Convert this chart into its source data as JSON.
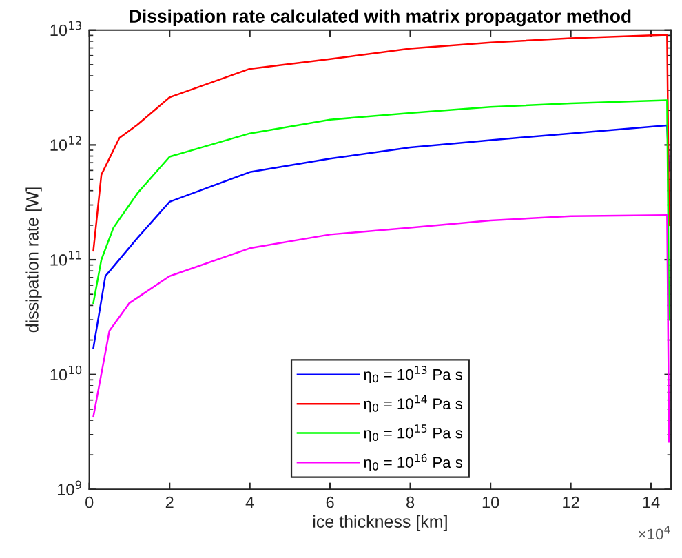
{
  "chart_data": {
    "type": "line",
    "title": "Dissipation rate calculated with matrix propagator method",
    "xlabel": "ice thickness [km]",
    "ylabel": "dissipation rate [W]",
    "annotations": [
      "×10$^{4}$"
    ],
    "log": "y",
    "xlim": [
      0,
      14.5
    ],
    "xticks": [
      0,
      2,
      4,
      6,
      8,
      10,
      12,
      14
    ],
    "ylim": [
      1000000000.0,
      10000000000000.0
    ],
    "yticks": [
      {
        "value": 1000000000.0,
        "label": "10$^{9}$"
      },
      {
        "value": 10000000000.0,
        "label": "10$^{10}$"
      },
      {
        "value": 100000000000.0,
        "label": "10$^{11}$"
      },
      {
        "value": 1000000000000.0,
        "label": "10$^{12}$"
      },
      {
        "value": 10000000000000.0,
        "label": "10$^{13}$"
      }
    ],
    "grid": false,
    "legend": "bottom",
    "line_style": "solid",
    "marker": "none",
    "series": [
      {
        "name": "η$_{0}$ = 10$^{13}$ Pa s",
        "color": "#0000ff",
        "x": [
          0.1,
          0.4,
          1.2,
          2,
          4,
          6,
          8,
          10,
          12,
          14.4,
          14.45
        ],
        "values": [
          17000000000.0,
          72000000000.0,
          155000000000.0,
          320000000000.0,
          580000000000.0,
          760000000000.0,
          950000000000.0,
          1100000000000.0,
          1260000000000.0,
          1480000000000.0,
          600000000000.0
        ]
      },
      {
        "name": "η$_{0}$ = 10$^{14}$ Pa s",
        "color": "#ff0000",
        "x": [
          0.1,
          0.3,
          0.75,
          1.2,
          2,
          4,
          6,
          8,
          10,
          12,
          14.4,
          14.45
        ],
        "values": [
          120000000000.0,
          550000000000.0,
          1150000000000.0,
          1500000000000.0,
          2600000000000.0,
          4600000000000.0,
          5600000000000.0,
          6900000000000.0,
          7800000000000.0,
          8500000000000.0,
          9100000000000.0,
          200000000000.0
        ]
      },
      {
        "name": "η$_{0}$ = 10$^{15}$ Pa s",
        "color": "#00ff00",
        "x": [
          0.1,
          0.3,
          0.6,
          1.2,
          2,
          4,
          6,
          8,
          10,
          12,
          14.4,
          14.45
        ],
        "values": [
          42000000000.0,
          100000000000.0,
          190000000000.0,
          380000000000.0,
          790000000000.0,
          1260000000000.0,
          1660000000000.0,
          1900000000000.0,
          2140000000000.0,
          2300000000000.0,
          2450000000000.0,
          30000000000.0
        ]
      },
      {
        "name": "η$_{0}$ = 10$^{16}$ Pa s",
        "color": "#ff00ff",
        "x": [
          0.1,
          0.5,
          1,
          2,
          4,
          6,
          8,
          10,
          12,
          14.4,
          14.45
        ],
        "values": [
          4300000000.0,
          24000000000.0,
          42000000000.0,
          72000000000.0,
          126000000000.0,
          166000000000.0,
          190000000000.0,
          220000000000.0,
          240000000000.0,
          245000000000.0,
          2600000000.0
        ]
      }
    ]
  }
}
